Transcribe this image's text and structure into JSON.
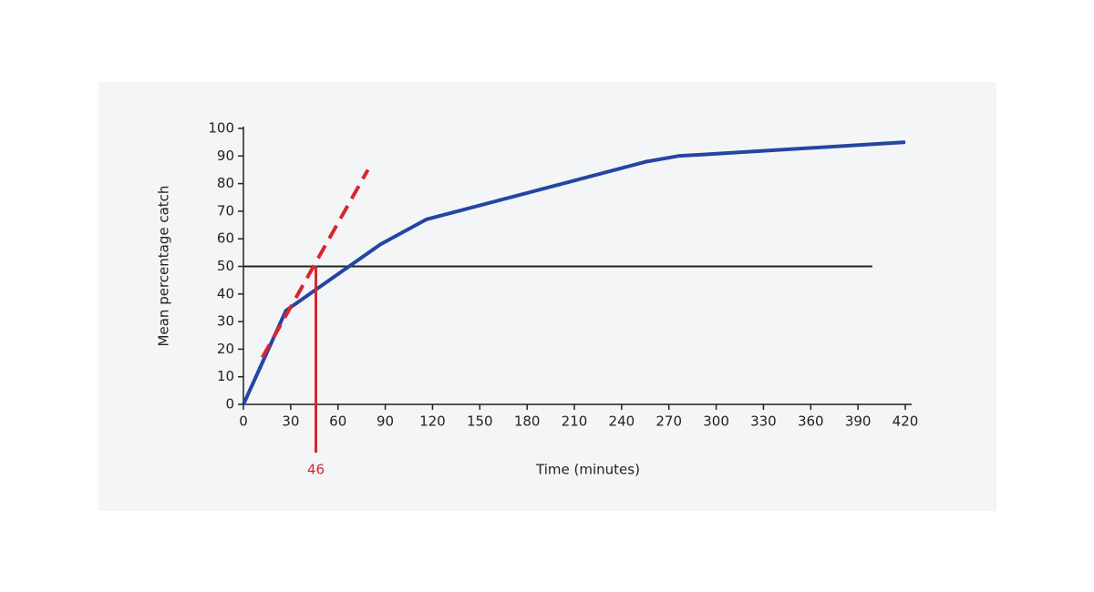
{
  "chart_data": {
    "type": "line",
    "x_label": "Time (minutes)",
    "y_label": "Mean percentage catch",
    "xlim": [
      0,
      420
    ],
    "ylim": [
      0,
      100
    ],
    "xticks": [
      0,
      30,
      60,
      90,
      120,
      150,
      180,
      210,
      240,
      270,
      300,
      330,
      360,
      390,
      420
    ],
    "yticks": [
      0,
      10,
      20,
      30,
      40,
      50,
      60,
      70,
      80,
      90,
      100
    ],
    "series": [
      {
        "color": "#2545a3",
        "x": [
          0,
          27,
          87,
          116,
          256,
          276,
          420
        ],
        "values": [
          0,
          34,
          58,
          67,
          88,
          90,
          95
        ]
      },
      {
        "color": "#d8262c",
        "dashed": true,
        "x": [
          12,
          79
        ],
        "values": [
          17,
          85
        ]
      }
    ],
    "reference_line": {
      "y": 50,
      "x": [
        0,
        399
      ],
      "color": "#222222"
    },
    "marker": {
      "x": 46,
      "y": 50,
      "color": "#d8262c"
    }
  }
}
